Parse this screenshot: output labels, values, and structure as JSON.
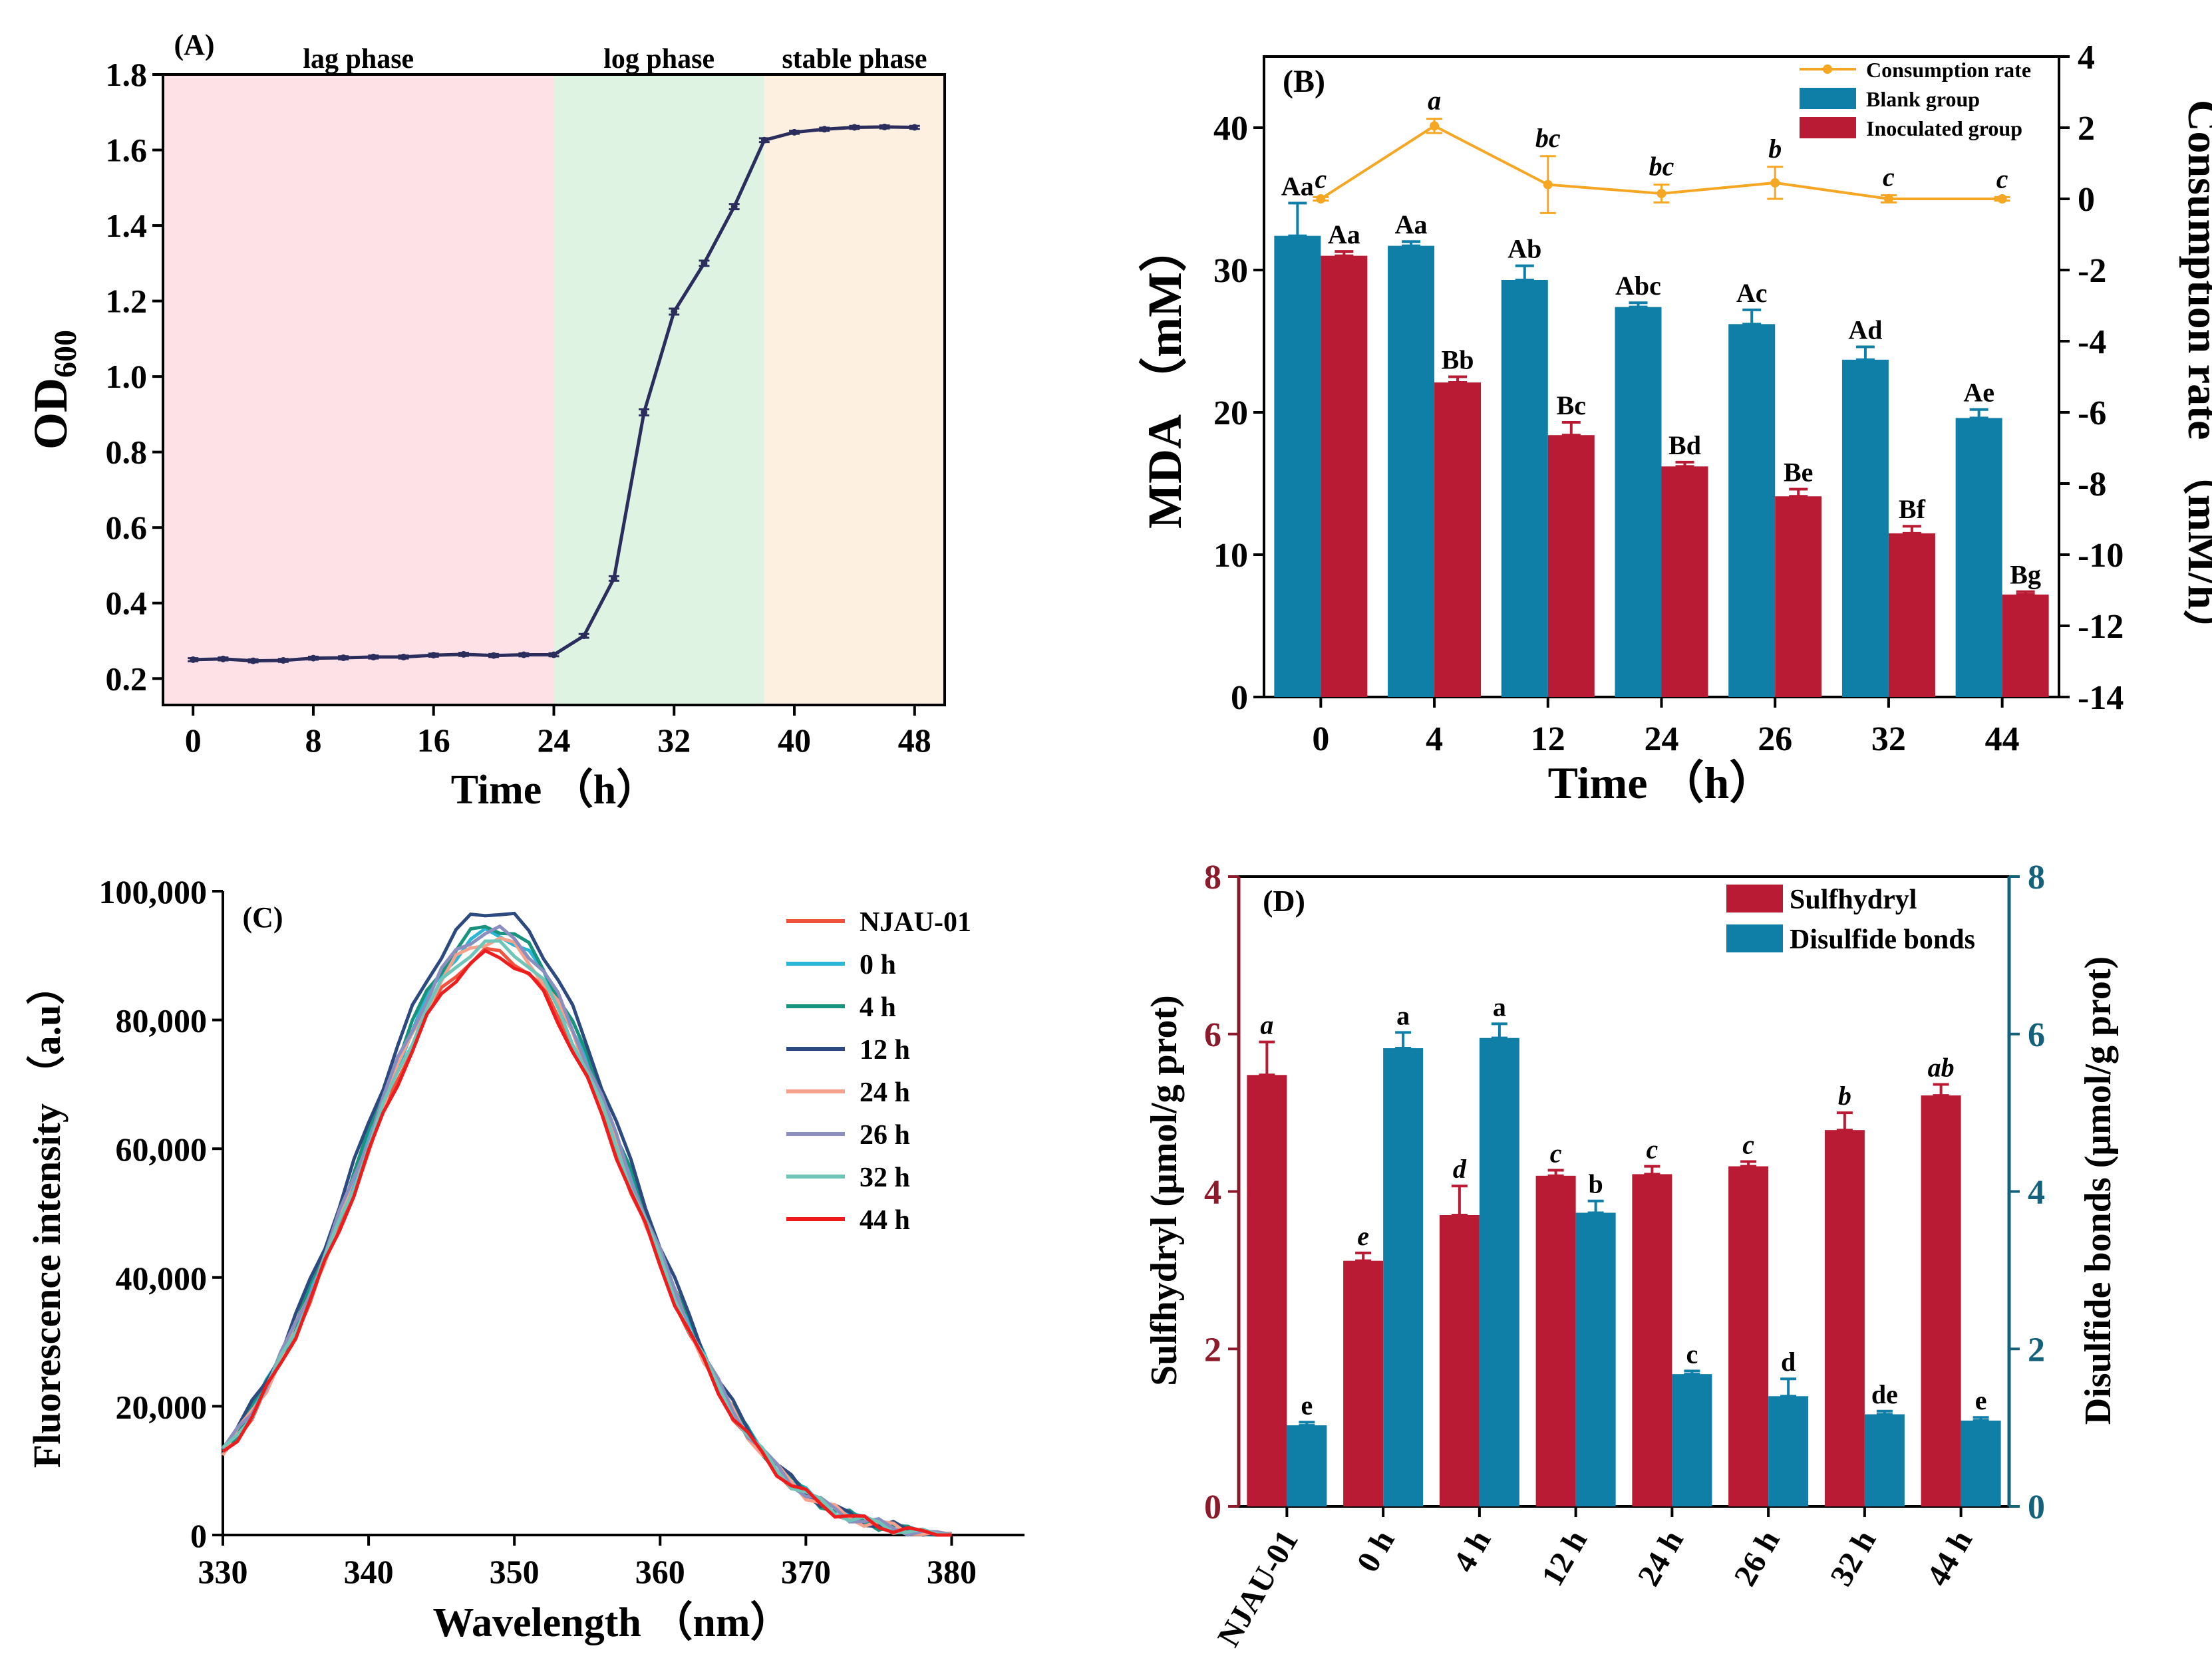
{
  "chart_data": [
    {
      "type": "line",
      "panel_label": "(A)",
      "xlabel": "Time （h）",
      "ylabel_main": "OD",
      "ylabel_sub": "600",
      "xlim": [
        -2,
        50
      ],
      "ylim": [
        0.13,
        1.8
      ],
      "xticks": [
        0,
        8,
        16,
        24,
        32,
        40,
        48
      ],
      "yticks": [
        0.2,
        0.4,
        0.6,
        0.8,
        1.0,
        1.2,
        1.4,
        1.6,
        1.8
      ],
      "ytick_labels": [
        "0.2",
        "0.4",
        "0.6",
        "0.8",
        "1.0",
        "1.2",
        "1.4",
        "1.6",
        "1.8"
      ],
      "phases": [
        {
          "label": "lag phase",
          "start": -2,
          "end": 24,
          "color": "#fde1e6"
        },
        {
          "label": "log phase",
          "start": 24,
          "end": 38,
          "color": "#dff3e2"
        },
        {
          "label": "stable phase",
          "start": 38,
          "end": 50,
          "color": "#fdf0e1"
        }
      ],
      "series": [
        {
          "name": "OD600",
          "color": "#2b2d5c",
          "x": [
            0,
            2,
            4,
            6,
            8,
            10,
            12,
            14,
            16,
            18,
            20,
            22,
            24,
            26,
            28,
            30,
            32,
            34,
            36,
            38,
            40,
            42,
            44,
            46,
            48
          ],
          "y": [
            0.25,
            0.252,
            0.247,
            0.248,
            0.254,
            0.255,
            0.257,
            0.257,
            0.262,
            0.264,
            0.261,
            0.263,
            0.263,
            0.313,
            0.465,
            0.905,
            1.172,
            1.3,
            1.45,
            1.626,
            1.647,
            1.655,
            1.66,
            1.661,
            1.66
          ],
          "err": [
            0.004,
            0.004,
            0.004,
            0.004,
            0.004,
            0.004,
            0.004,
            0.004,
            0.004,
            0.004,
            0.004,
            0.004,
            0.004,
            0.005,
            0.006,
            0.008,
            0.008,
            0.007,
            0.007,
            0.005,
            0.004,
            0.004,
            0.004,
            0.004,
            0.004
          ]
        }
      ]
    },
    {
      "type": "bar",
      "panel_label": "(B)",
      "xlabel": "Time （h）",
      "ylabel": "MDA （mM）",
      "y2label": "Consumption rate （mM/h）",
      "categories": [
        "0",
        "4",
        "12",
        "24",
        "26",
        "32",
        "44"
      ],
      "ylim": [
        0,
        45
      ],
      "yticks": [
        0,
        10,
        20,
        30,
        40
      ],
      "y2lim": [
        -14,
        4
      ],
      "y2ticks": [
        -14,
        -12,
        -10,
        -8,
        -6,
        -4,
        -2,
        0,
        2,
        4
      ],
      "series": [
        {
          "name": "Blank group",
          "color": "#0f7fa8",
          "values": [
            32.4,
            31.7,
            29.3,
            27.4,
            26.2,
            23.7,
            19.6
          ],
          "err": [
            2.3,
            0.3,
            1.0,
            0.3,
            1.0,
            0.9,
            0.6
          ],
          "labels": [
            "Aa",
            "Aa",
            "Ab",
            "Abc",
            "Ac",
            "Ad",
            "Ae"
          ]
        },
        {
          "name": "Inoculated group",
          "color": "#b81b33",
          "values": [
            31.0,
            22.1,
            18.4,
            16.2,
            14.1,
            11.5,
            7.2
          ],
          "err": [
            0.3,
            0.4,
            0.9,
            0.3,
            0.5,
            0.5,
            0.2
          ],
          "labels": [
            "Aa",
            "Bb",
            "Bc",
            "Bd",
            "Be",
            "Bf",
            "Bg"
          ]
        }
      ],
      "line_series": {
        "name": "Consumption rate",
        "color": "#f5a623",
        "axis": "y2",
        "values": [
          0.0,
          2.05,
          0.4,
          0.15,
          0.45,
          0.0,
          0.0
        ],
        "err": [
          0.05,
          0.2,
          0.8,
          0.25,
          0.45,
          0.1,
          0.05
        ],
        "labels": [
          "c",
          "a",
          "bc",
          "bc",
          "b",
          "c",
          "c"
        ]
      },
      "legend": [
        "Consumption rate",
        "Blank group",
        "Inoculated group"
      ]
    },
    {
      "type": "line",
      "panel_label": "(C)",
      "xlabel": "Wavelength （nm）",
      "ylabel": "Fluorescence intensity （a.u）",
      "xlim": [
        330,
        385
      ],
      "ylim": [
        0,
        100000
      ],
      "xticks": [
        330,
        340,
        350,
        360,
        370,
        380
      ],
      "yticks": [
        0,
        20000,
        40000,
        60000,
        80000,
        100000
      ],
      "ytick_labels": [
        "0",
        "20,000",
        "40,000",
        "60,000",
        "80,000",
        "100,000"
      ],
      "x": [
        330,
        331,
        332,
        333,
        334,
        335,
        336,
        337,
        338,
        339,
        340,
        341,
        342,
        343,
        344,
        345,
        346,
        347,
        348,
        349,
        350,
        351,
        352,
        353,
        354,
        355,
        356,
        357,
        358,
        359,
        360,
        361,
        362,
        363,
        364,
        365,
        366,
        367,
        368,
        369,
        370,
        371,
        372,
        373,
        374,
        375,
        376,
        377,
        378,
        379,
        380
      ],
      "series": [
        {
          "name": "NJAU-01",
          "color": "#f0523e",
          "peak": 90500,
          "offset": 0
        },
        {
          "name": "0 h",
          "color": "#2ab7d6",
          "peak": 93500,
          "offset": 1
        },
        {
          "name": "4 h",
          "color": "#18937e",
          "peak": 94500,
          "offset": 2
        },
        {
          "name": "12 h",
          "color": "#2c4a80",
          "peak": 97000,
          "offset": 3
        },
        {
          "name": "24 h",
          "color": "#f5a18c",
          "peak": 92500,
          "offset": 4
        },
        {
          "name": "26 h",
          "color": "#8b8fbf",
          "peak": 93800,
          "offset": 5
        },
        {
          "name": "32 h",
          "color": "#6ec5b8",
          "peak": 91800,
          "offset": 6
        },
        {
          "name": "44 h",
          "color": "#ee1c1c",
          "peak": 90000,
          "offset": 7
        }
      ]
    },
    {
      "type": "bar",
      "panel_label": "(D)",
      "ylabel": "Sulfhydryl (μmol/g prot)",
      "y2label": "Disulfide bonds (μmol/g prot)",
      "categories": [
        "NJAU-01",
        "0 h",
        "4 h",
        "12 h",
        "24 h",
        "26 h",
        "32 h",
        "44 h"
      ],
      "ylim": [
        0,
        8
      ],
      "yticks": [
        0,
        2,
        4,
        6,
        8
      ],
      "y2lim": [
        0,
        8
      ],
      "y2ticks": [
        0,
        2,
        4,
        6,
        8
      ],
      "left_axis_color": "#8b1a2b",
      "right_axis_color": "#14617c",
      "series": [
        {
          "name": "Sulfhydryl",
          "color": "#b81b33",
          "axis": "y",
          "values": [
            5.48,
            3.12,
            3.7,
            4.2,
            4.22,
            4.32,
            4.78,
            5.22
          ],
          "err": [
            0.42,
            0.1,
            0.37,
            0.07,
            0.1,
            0.06,
            0.22,
            0.14
          ],
          "labels": [
            "a",
            "e",
            "d",
            "c",
            "c",
            "c",
            "b",
            "ab"
          ]
        },
        {
          "name": "Disulfide bonds",
          "color": "#0f7fa8",
          "axis": "y2",
          "values": [
            1.03,
            5.82,
            5.95,
            3.73,
            1.68,
            1.4,
            1.17,
            1.09
          ],
          "err": [
            0.04,
            0.2,
            0.18,
            0.15,
            0.04,
            0.22,
            0.04,
            0.04
          ],
          "labels": [
            "e",
            "a",
            "a",
            "b",
            "c",
            "d",
            "de",
            "e"
          ]
        }
      ],
      "legend": [
        "Sulfhydryl",
        "Disulfide bonds"
      ]
    }
  ]
}
